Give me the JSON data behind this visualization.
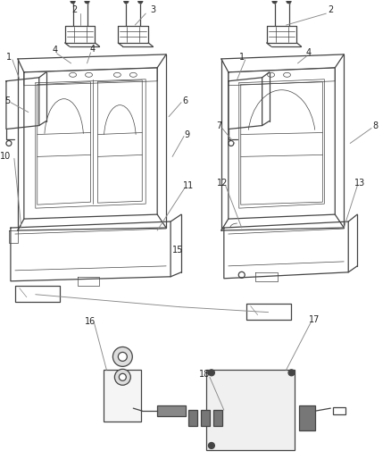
{
  "bg_color": "#ffffff",
  "lc": "#444444",
  "lc2": "#888888",
  "lw": 0.9,
  "lw_thin": 0.5,
  "label_fs": 7.0,
  "fig_w": 4.38,
  "fig_h": 5.33,
  "dpi": 100
}
